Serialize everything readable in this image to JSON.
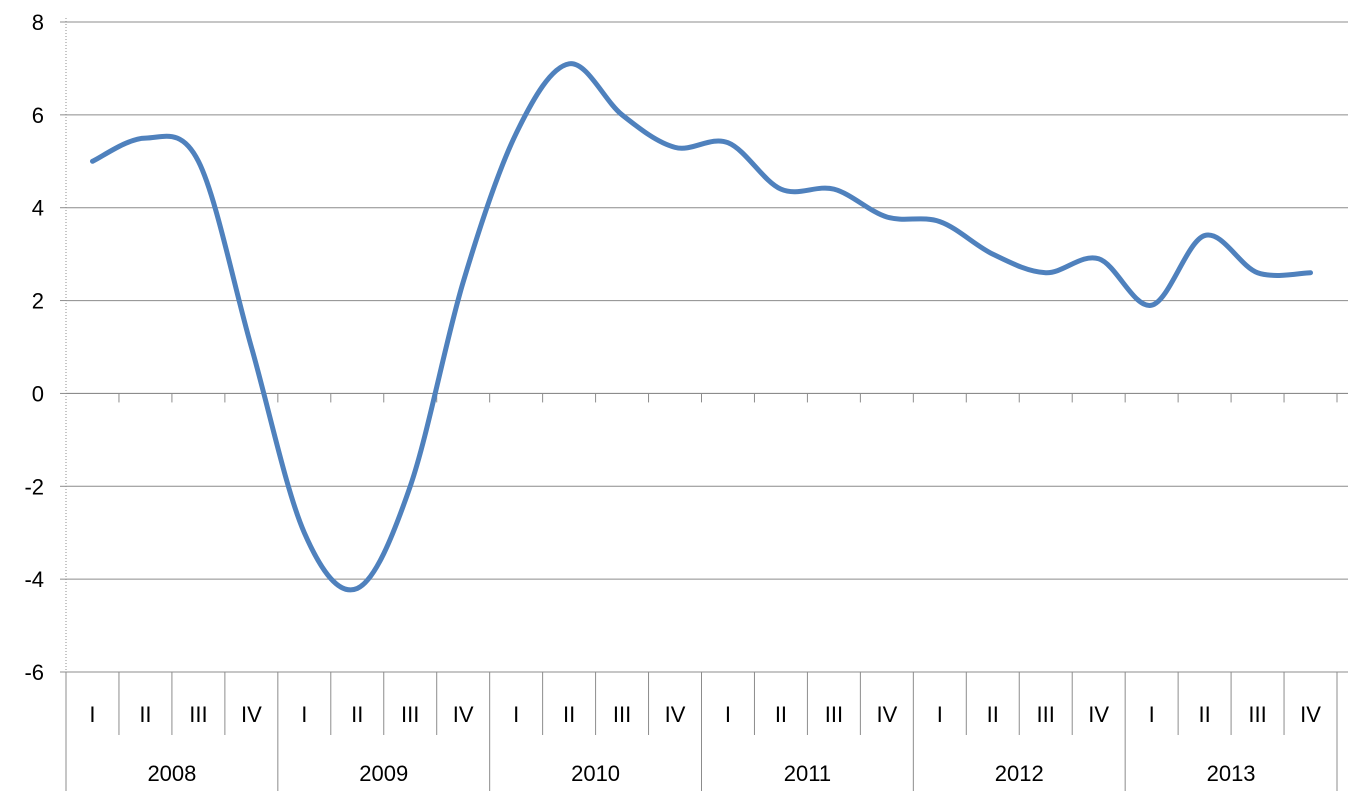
{
  "chart_data": {
    "type": "line",
    "title": "",
    "xlabel": "",
    "ylabel": "",
    "ylim": [
      -6,
      8
    ],
    "yticks": [
      -6,
      -4,
      -2,
      0,
      2,
      4,
      6,
      8
    ],
    "grid": true,
    "legend": "none",
    "line_color": "#4F81BD",
    "grid_color": "#8C8C8C",
    "years": [
      "2008",
      "2009",
      "2010",
      "2011",
      "2012",
      "2013"
    ],
    "quarters": [
      "I",
      "II",
      "III",
      "IV"
    ],
    "categories": [
      "I",
      "II",
      "III",
      "IV",
      "I",
      "II",
      "III",
      "IV",
      "I",
      "II",
      "III",
      "IV",
      "I",
      "II",
      "III",
      "IV",
      "I",
      "II",
      "III",
      "IV",
      "I",
      "II",
      "III",
      "IV"
    ],
    "series": [
      {
        "values": [
          5.0,
          5.5,
          5.0,
          1.0,
          -3.0,
          -4.2,
          -2.0,
          2.4,
          5.6,
          7.1,
          6.0,
          5.3,
          5.4,
          4.4,
          4.4,
          3.8,
          3.7,
          3.0,
          2.6,
          2.9,
          1.9,
          3.4,
          2.6,
          2.6
        ]
      }
    ]
  }
}
